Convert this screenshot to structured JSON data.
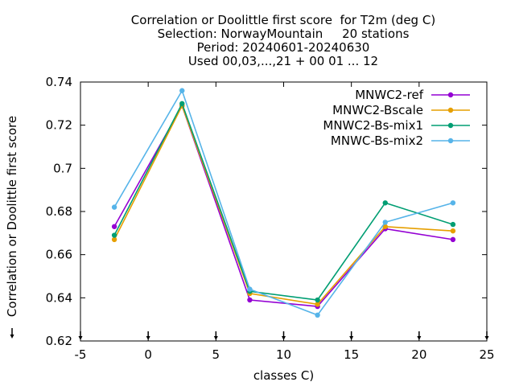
{
  "chart_data": {
    "type": "line",
    "title_lines": [
      "Correlation or Doolittle first score  for T2m (deg C)",
      "Selection: NorwayMountain     20 stations",
      "Period: 20240601-20240630",
      "Used 00,03,...,21 + 00 01 ... 12"
    ],
    "xlabel": "classes C)",
    "ylabel": "Correlation or Doolittle first score",
    "xlim": [
      -5,
      25
    ],
    "ylim": [
      0.62,
      0.74
    ],
    "xticks": [
      -5,
      0,
      5,
      10,
      15,
      20,
      25
    ],
    "yticks": [
      0.62,
      0.64,
      0.66,
      0.68,
      0.7,
      0.72,
      0.74
    ],
    "ytick_labels": [
      "0.62",
      "0.64",
      "0.66",
      "0.68",
      "0.7",
      "0.72",
      "0.74"
    ],
    "grid": false,
    "legend_position": "top-right",
    "counts_markers_x": [
      -5,
      0,
      5,
      10,
      15,
      20,
      25
    ],
    "series": [
      {
        "name": "MNWC2-ref",
        "color": "#9400d3",
        "x": [
          -2.5,
          2.5,
          7.5,
          12.5,
          17.5,
          22.5
        ],
        "values": [
          0.673,
          0.729,
          0.639,
          0.636,
          0.672,
          0.667
        ]
      },
      {
        "name": "MNWC2-Bscale",
        "color": "#e69f00",
        "x": [
          -2.5,
          2.5,
          7.5,
          12.5,
          17.5,
          22.5
        ],
        "values": [
          0.667,
          0.729,
          0.642,
          0.637,
          0.673,
          0.671
        ]
      },
      {
        "name": "MNWC2-Bs-mix1",
        "color": "#009e73",
        "x": [
          -2.5,
          2.5,
          7.5,
          12.5,
          17.5,
          22.5
        ],
        "values": [
          0.669,
          0.73,
          0.643,
          0.639,
          0.684,
          0.674
        ]
      },
      {
        "name": "MNWC-Bs-mix2",
        "color": "#56b4e9",
        "x": [
          -2.5,
          2.5,
          7.5,
          12.5,
          17.5,
          22.5
        ],
        "values": [
          0.682,
          0.736,
          0.644,
          0.632,
          0.675,
          0.684
        ]
      }
    ]
  }
}
